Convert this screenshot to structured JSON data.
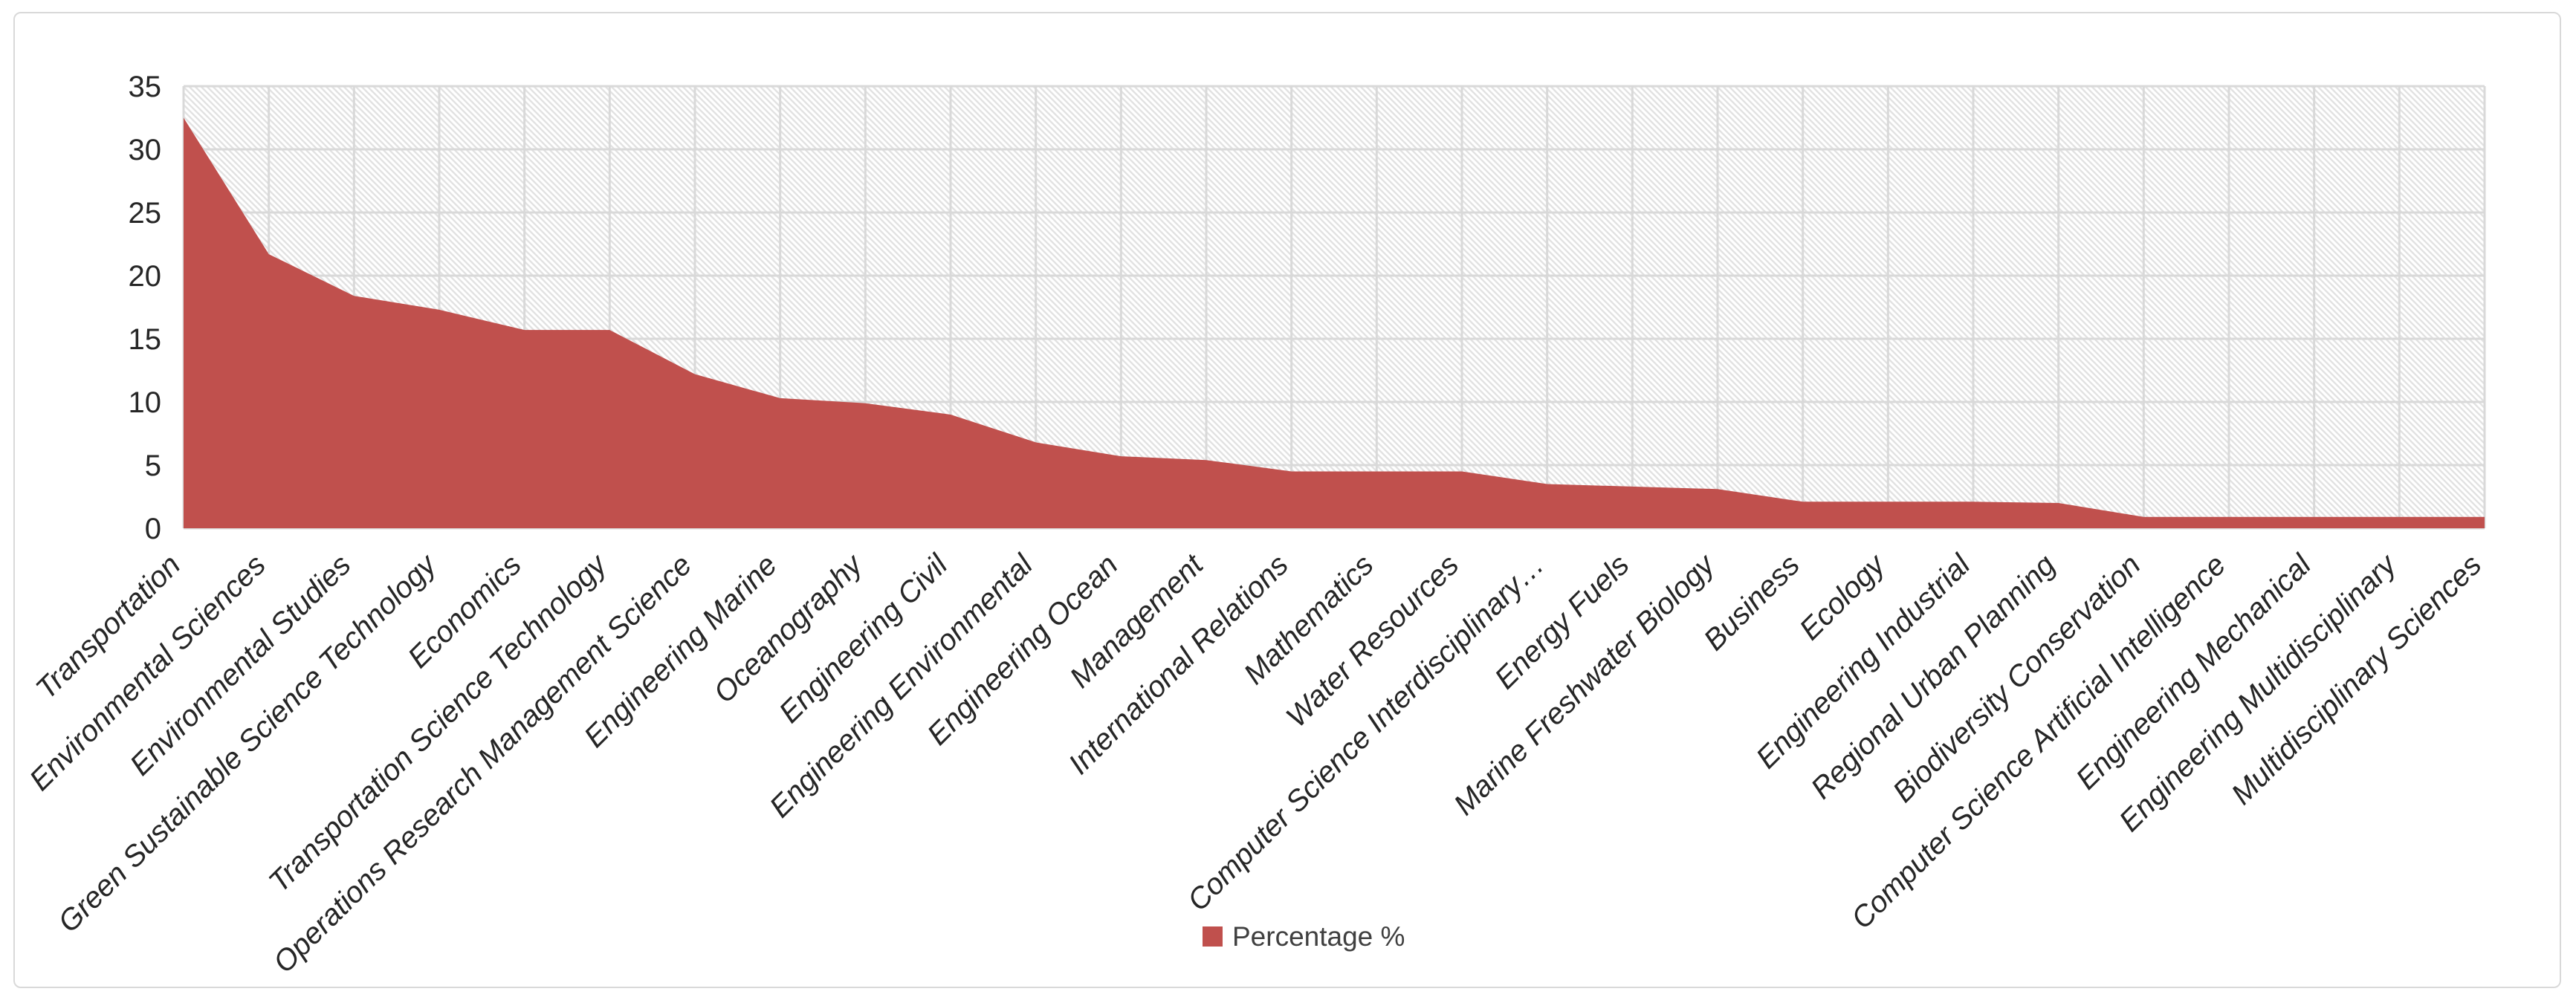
{
  "legend": {
    "label": "Percentage %"
  },
  "chart_data": {
    "type": "area",
    "title": "",
    "xlabel": "",
    "ylabel": "",
    "categories": [
      "Transportation",
      "Environmental Sciences",
      "Environmental Studies",
      "Green Sustainable Science Technology",
      "Economics",
      "Transportation Science Technology",
      "Operations Research Management Science",
      "Engineering Marine",
      "Oceanography",
      "Engineering Civil",
      "Engineering Environmental",
      "Engineering Ocean",
      "Management",
      "International Relations",
      "Mathematics",
      "Water Resources",
      "Computer Science Interdisciplinary…",
      "Energy Fuels",
      "Marine Freshwater Biology",
      "Business",
      "Ecology",
      "Engineering Industrial",
      "Regional Urban Planning",
      "Biodiversity Conservation",
      "Computer Science Artificial Intelligence",
      "Engineering Mechanical",
      "Engineering Multidisciplinary",
      "Multidisciplinary Sciences"
    ],
    "series": [
      {
        "name": "Percentage %",
        "values": [
          32.5,
          21.7,
          18.4,
          17.3,
          15.7,
          15.7,
          12.2,
          10.3,
          9.9,
          9.0,
          6.8,
          5.7,
          5.4,
          4.5,
          4.5,
          4.5,
          3.5,
          3.3,
          3.1,
          2.1,
          2.1,
          2.1,
          2.0,
          0.9,
          0.9,
          0.9,
          0.9,
          0.9
        ]
      }
    ],
    "ylim": [
      0,
      35
    ],
    "yticks": [
      0,
      5,
      10,
      15,
      20,
      25,
      30,
      35
    ],
    "grid": true,
    "plot_background_pattern": "diagonal-hatch",
    "legend_position": "bottom-center",
    "colors": {
      "area_fill": "#c0504d",
      "gridline": "#d9d9d9",
      "hatch_line": "#e2e2e2",
      "axis_text": "#262626",
      "legend_text": "#404040",
      "chart_border": "#d9d9d9",
      "background": "#ffffff"
    }
  }
}
